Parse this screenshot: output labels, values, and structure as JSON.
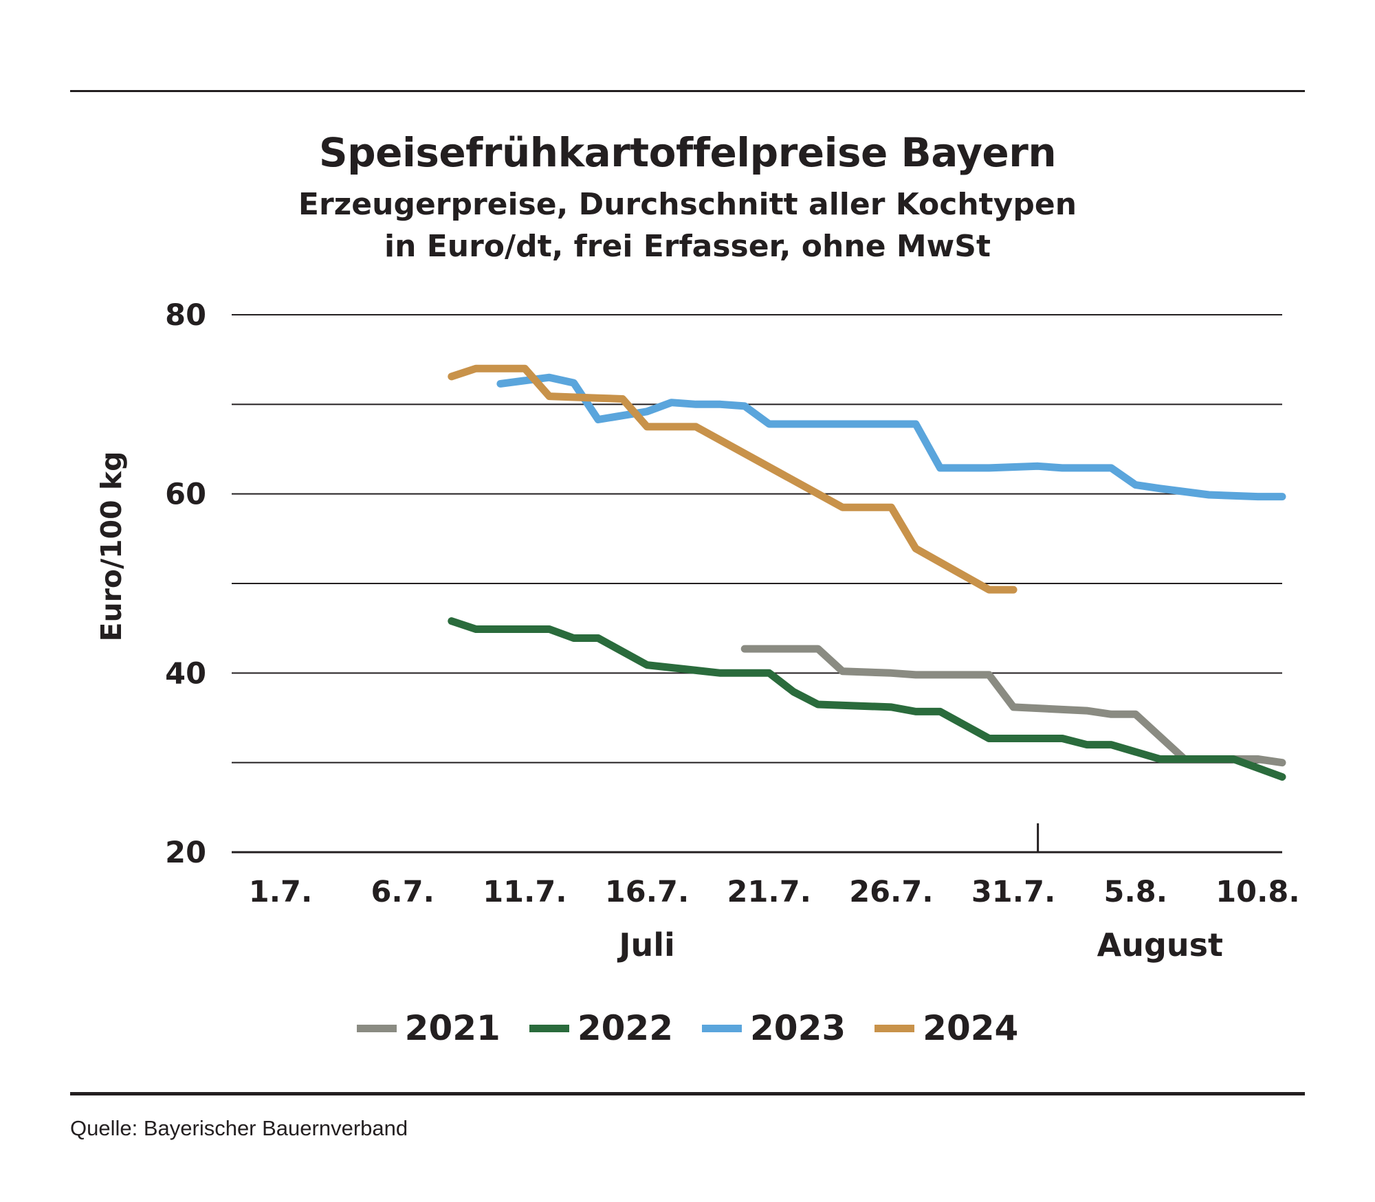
{
  "header": {
    "title": "Speisefrühkartoffelpreise Bayern",
    "subtitle_line1": "Erzeugerpreise, Durchschnitt aller Kochtypen",
    "subtitle_line2": "in Euro/dt, frei Erfasser, ohne MwSt"
  },
  "source": "Quelle: Bayerischer Bauernverband",
  "chart_data": {
    "type": "line",
    "title": "Speisefrühkartoffelpreise Bayern",
    "subtitle": "Erzeugerpreise, Durchschnitt aller Kochtypen in Euro/dt, frei Erfasser, ohne MwSt",
    "ylabel": "Euro/100 kg",
    "ylim": [
      20,
      80
    ],
    "yticks": [
      20,
      40,
      60,
      80
    ],
    "ygrid": [
      30,
      40,
      50,
      60,
      70,
      80
    ],
    "xlim": [
      "2024-06-29",
      "2024-08-11"
    ],
    "xtick_labels": [
      "1.7.",
      "6.7.",
      "11.7.",
      "16.7.",
      "21.7.",
      "26.7.",
      "31.7.",
      "5.8.",
      "10.8."
    ],
    "xticks": [
      "2024-07-01",
      "2024-07-06",
      "2024-07-11",
      "2024-07-16",
      "2024-07-21",
      "2024-07-26",
      "2024-07-31",
      "2024-08-05",
      "2024-08-10"
    ],
    "month_labels": [
      {
        "label": "Juli",
        "x": "2024-07-16"
      },
      {
        "label": "August",
        "x": "2024-08-06"
      }
    ],
    "month_divider": "2024-08-01",
    "grid": true,
    "legend_position": "bottom",
    "series": [
      {
        "name": "2021",
        "color": "#8a8b82",
        "points": [
          [
            "2024-07-20",
            42.7
          ],
          [
            "2024-07-21",
            42.7
          ],
          [
            "2024-07-22",
            42.7
          ],
          [
            "2024-07-23",
            42.7
          ],
          [
            "2024-07-24",
            40.2
          ],
          [
            "2024-07-26",
            40.0
          ],
          [
            "2024-07-27",
            39.8
          ],
          [
            "2024-07-29",
            39.8
          ],
          [
            "2024-07-30",
            39.8
          ],
          [
            "2024-07-31",
            36.2
          ],
          [
            "2024-08-03",
            35.8
          ],
          [
            "2024-08-04",
            35.4
          ],
          [
            "2024-08-05",
            35.4
          ],
          [
            "2024-08-07",
            30.4
          ],
          [
            "2024-08-08",
            30.4
          ],
          [
            "2024-08-10",
            30.4
          ],
          [
            "2024-08-11",
            30.0
          ]
        ]
      },
      {
        "name": "2022",
        "color": "#2a6b3c",
        "points": [
          [
            "2024-07-08",
            45.8
          ],
          [
            "2024-07-09",
            44.9
          ],
          [
            "2024-07-11",
            44.9
          ],
          [
            "2024-07-12",
            44.9
          ],
          [
            "2024-07-13",
            43.9
          ],
          [
            "2024-07-14",
            43.9
          ],
          [
            "2024-07-16",
            40.9
          ],
          [
            "2024-07-18",
            40.3
          ],
          [
            "2024-07-19",
            40.0
          ],
          [
            "2024-07-20",
            40.0
          ],
          [
            "2024-07-21",
            40.0
          ],
          [
            "2024-07-22",
            37.9
          ],
          [
            "2024-07-23",
            36.5
          ],
          [
            "2024-07-25",
            36.3
          ],
          [
            "2024-07-26",
            36.2
          ],
          [
            "2024-07-27",
            35.7
          ],
          [
            "2024-07-28",
            35.7
          ],
          [
            "2024-07-30",
            32.7
          ],
          [
            "2024-07-31",
            32.7
          ],
          [
            "2024-08-02",
            32.7
          ],
          [
            "2024-08-03",
            32.0
          ],
          [
            "2024-08-04",
            32.0
          ],
          [
            "2024-08-06",
            30.4
          ],
          [
            "2024-08-08",
            30.4
          ],
          [
            "2024-08-09",
            30.4
          ],
          [
            "2024-08-11",
            28.4
          ]
        ]
      },
      {
        "name": "2023",
        "color": "#5aa5dc",
        "points": [
          [
            "2024-07-10",
            72.3
          ],
          [
            "2024-07-12",
            73.0
          ],
          [
            "2024-07-13",
            72.4
          ],
          [
            "2024-07-14",
            68.3
          ],
          [
            "2024-07-16",
            69.2
          ],
          [
            "2024-07-17",
            70.2
          ],
          [
            "2024-07-18",
            70.0
          ],
          [
            "2024-07-19",
            70.0
          ],
          [
            "2024-07-20",
            69.8
          ],
          [
            "2024-07-21",
            67.8
          ],
          [
            "2024-07-23",
            67.8
          ],
          [
            "2024-07-25",
            67.8
          ],
          [
            "2024-07-27",
            67.8
          ],
          [
            "2024-07-28",
            62.9
          ],
          [
            "2024-07-30",
            62.9
          ],
          [
            "2024-08-01",
            63.1
          ],
          [
            "2024-08-02",
            62.9
          ],
          [
            "2024-08-04",
            62.9
          ],
          [
            "2024-08-05",
            61.0
          ],
          [
            "2024-08-06",
            60.6
          ],
          [
            "2024-08-08",
            59.9
          ],
          [
            "2024-08-10",
            59.7
          ],
          [
            "2024-08-11",
            59.7
          ]
        ]
      },
      {
        "name": "2024",
        "color": "#c8924a",
        "points": [
          [
            "2024-07-08",
            73.1
          ],
          [
            "2024-07-09",
            74.0
          ],
          [
            "2024-07-10",
            74.0
          ],
          [
            "2024-07-11",
            74.0
          ],
          [
            "2024-07-12",
            70.9
          ],
          [
            "2024-07-14",
            70.7
          ],
          [
            "2024-07-15",
            70.6
          ],
          [
            "2024-07-16",
            67.5
          ],
          [
            "2024-07-17",
            67.5
          ],
          [
            "2024-07-18",
            67.5
          ],
          [
            "2024-07-24",
            58.5
          ],
          [
            "2024-07-26",
            58.5
          ],
          [
            "2024-07-27",
            53.9
          ],
          [
            "2024-07-30",
            49.3
          ],
          [
            "2024-07-31",
            49.3
          ]
        ]
      }
    ]
  }
}
